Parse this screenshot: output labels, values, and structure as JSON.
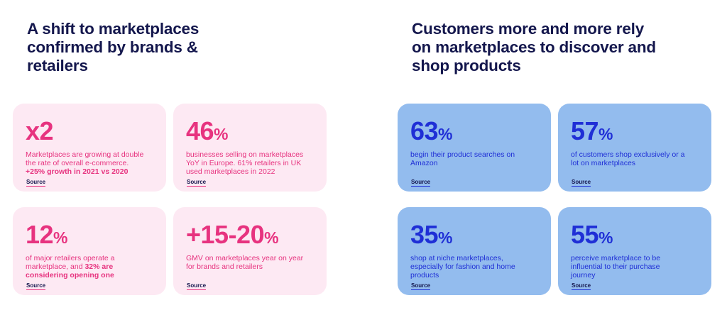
{
  "left": {
    "heading": [
      "A shift to marketplaces",
      "confirmed by brands &",
      "retailers"
    ],
    "cards": [
      {
        "stat": "x2",
        "pct": "",
        "desc_lines": [
          "Marketplaces are growing at double",
          "the rate of overall e-commerce."
        ],
        "desc_bold": "+25% growth in 2021 vs 2020",
        "source": "Source"
      },
      {
        "stat": "46",
        "pct": "%",
        "desc_lines": [
          "businesses selling on marketplaces",
          "YoY in Europe. 61% retailers in UK",
          "used marketplaces in 2022"
        ],
        "source": "Source"
      },
      {
        "stat": "12",
        "pct": "%",
        "desc_lines": [
          "of major retailers operate a"
        ],
        "desc_mixed_pre": "marketplace, and ",
        "desc_mixed_bold": "32% are",
        "desc_bold": "considering opening one",
        "source": "Source"
      },
      {
        "stat": "+15-20",
        "pct": "%",
        "desc_lines": [
          "GMV on marketplaces year on year",
          "for brands and retailers"
        ],
        "source": "Source"
      }
    ]
  },
  "right": {
    "heading": [
      "Customers more and more rely",
      "on marketplaces to discover and",
      "shop products"
    ],
    "cards": [
      {
        "stat": "63",
        "pct": "%",
        "desc_lines": [
          "begin their product searches on",
          "Amazon"
        ],
        "source": "Source"
      },
      {
        "stat": "57",
        "pct": "%",
        "desc_lines": [
          "of customers shop exclusively or a",
          "lot on marketplaces"
        ],
        "source": "Source"
      },
      {
        "stat": "35",
        "pct": "%",
        "desc_lines": [
          "shop at niche marketplaces,",
          "especially for fashion and home",
          "products"
        ],
        "source": "Source"
      },
      {
        "stat": "55",
        "pct": "%",
        "desc_lines": [
          "perceive marketplace to be",
          "influential to their purchase",
          "journey"
        ],
        "source": "Source"
      }
    ]
  },
  "colors": {
    "heading": "#14174d",
    "pink_card_bg": "#fde9f3",
    "pink_text": "#e7337f",
    "blue_card_bg": "#93bcee",
    "blue_text": "#1f2fd6"
  }
}
